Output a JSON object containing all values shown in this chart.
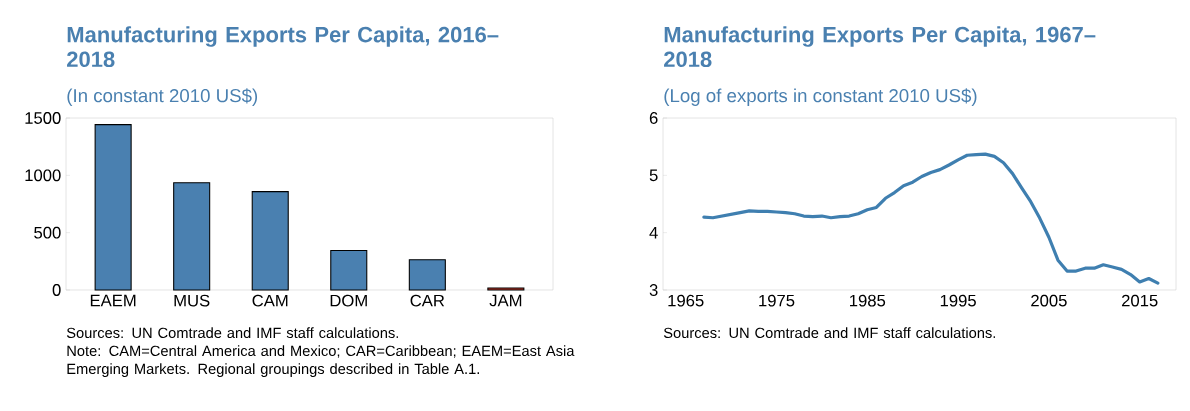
{
  "chart_data": [
    {
      "type": "bar",
      "title": "Manufacturing Exports Per Capita, 2016–2018",
      "subtitle": "(In constant 2010 US$)",
      "categories": [
        "EAEM",
        "MUS",
        "CAM",
        "DOM",
        "CAR",
        "JAM"
      ],
      "values": [
        1442,
        936,
        858,
        345,
        264,
        18
      ],
      "colors": [
        "#4a80b0",
        "#4a80b0",
        "#4a80b0",
        "#4a80b0",
        "#4a80b0",
        "#c0392b"
      ],
      "ylim": [
        0,
        1500
      ],
      "yticks": [
        0,
        500,
        1000,
        1500
      ],
      "annotations": [
        "Sources: UN Comtrade and IMF staff calculations.",
        "Note: CAM=Central America and Mexico; CAR=Caribbean; EAEM=East Asia Emerging Markets. Regional groupings described in Table A.1."
      ]
    },
    {
      "type": "line",
      "title": "Manufacturing Exports Per Capita, 1967–2018",
      "subtitle": "(Log of exports in constant 2010 US$)",
      "x": [
        1967,
        1968,
        1969,
        1970,
        1971,
        1972,
        1973,
        1974,
        1975,
        1976,
        1977,
        1978,
        1979,
        1980,
        1981,
        1982,
        1983,
        1984,
        1985,
        1986,
        1987,
        1988,
        1989,
        1990,
        1991,
        1992,
        1993,
        1994,
        1995,
        1996,
        1997,
        1998,
        1999,
        2000,
        2001,
        2002,
        2003,
        2004,
        2005,
        2006,
        2007,
        2008,
        2009,
        2010,
        2011,
        2012,
        2013,
        2014,
        2015,
        2016,
        2017
      ],
      "series": [
        {
          "color": "#3f7fb0",
          "values": [
            4.27,
            4.26,
            4.29,
            4.32,
            4.35,
            4.38,
            4.37,
            4.37,
            4.36,
            4.35,
            4.33,
            4.29,
            4.28,
            4.29,
            4.26,
            4.28,
            4.29,
            4.33,
            4.4,
            4.44,
            4.6,
            4.7,
            4.82,
            4.88,
            4.98,
            5.05,
            5.1,
            5.18,
            5.27,
            5.35,
            5.36,
            5.37,
            5.33,
            5.22,
            5.03,
            4.78,
            4.54,
            4.25,
            3.92,
            3.52,
            3.33,
            3.33,
            3.38,
            3.38,
            3.44,
            3.4,
            3.36,
            3.27,
            3.14,
            3.2,
            3.12
          ]
        }
      ],
      "xlim": [
        1962.5,
        2019
      ],
      "ylim": [
        3,
        6
      ],
      "xticks": [
        1965,
        1975,
        1985,
        1995,
        2005,
        2015
      ],
      "yticks": [
        3,
        4,
        5,
        6
      ],
      "annotations": [
        "Sources: UN Comtrade and IMF staff calculations."
      ]
    }
  ]
}
